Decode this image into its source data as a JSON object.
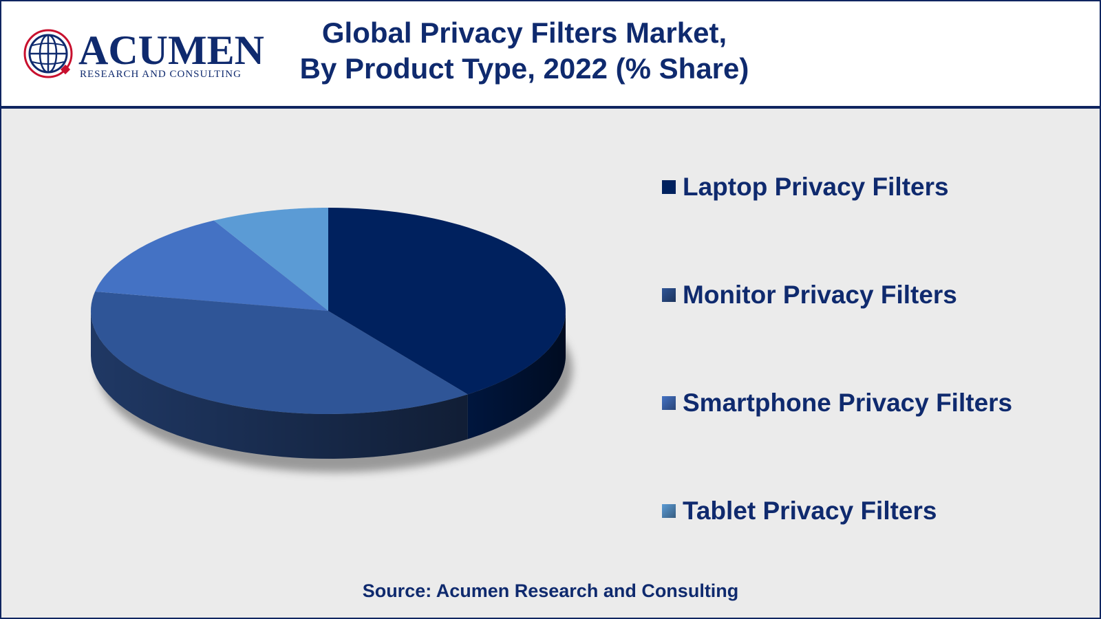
{
  "header": {
    "logo_word": "ACUMEN",
    "logo_tagline": "RESEARCH AND CONSULTING",
    "title_line1": "Global Privacy Filters Market,",
    "title_line2": "By Product Type, 2022 (% Share)"
  },
  "chart_data": {
    "type": "pie",
    "title": "Global Privacy Filters Market, By Product Type, 2022 (% Share)",
    "legend_position": "right",
    "categories": [
      "Laptop Privacy Filters",
      "Monitor Privacy Filters",
      "Smartphone Privacy Filters",
      "Tablet Privacy Filters"
    ],
    "values": [
      40,
      38,
      14,
      8
    ],
    "colors": [
      "#00215e",
      "#2f5597",
      "#4472c4",
      "#5b9bd5"
    ]
  },
  "footer": {
    "source": "Source: Acumen Research and Consulting"
  }
}
